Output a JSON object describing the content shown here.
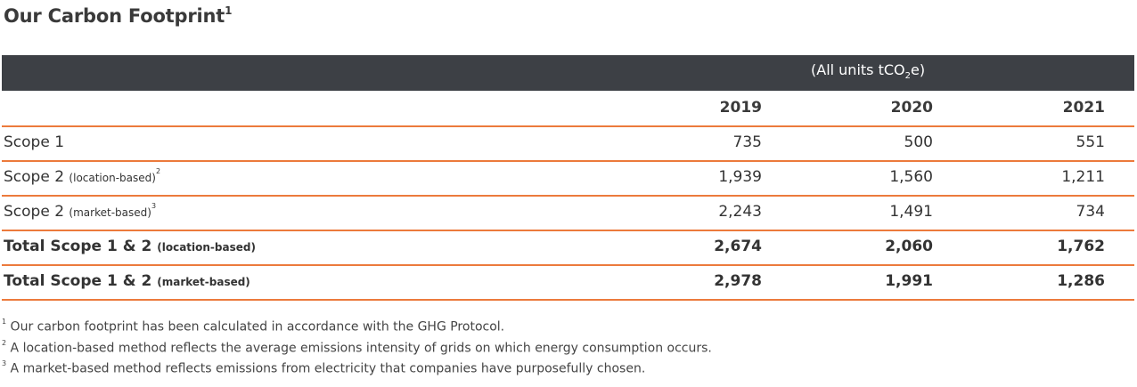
{
  "title": "Our Carbon Footprint",
  "title_sup": "1",
  "units": {
    "prefix": "(All units tCO",
    "sub": "2",
    "suffix": "e)"
  },
  "header": {
    "label": "",
    "years": [
      "2019",
      "2020",
      "2021"
    ]
  },
  "rows": [
    {
      "label": "Scope 1",
      "qualifier": "",
      "sup": "",
      "values": [
        "735",
        "500",
        "551"
      ],
      "bold": false
    },
    {
      "label": "Scope 2",
      "qualifier": "(location-based)",
      "sup": "2",
      "values": [
        "1,939",
        "1,560",
        "1,211"
      ],
      "bold": false
    },
    {
      "label": "Scope 2",
      "qualifier": "(market-based)",
      "sup": "3",
      "values": [
        "2,243",
        "1,491",
        "734"
      ],
      "bold": false
    },
    {
      "label": "Total Scope 1 & 2",
      "qualifier": "(location-based)",
      "sup": "",
      "values": [
        "2,674",
        "2,060",
        "1,762"
      ],
      "bold": true
    },
    {
      "label": "Total Scope 1 & 2",
      "qualifier": "(market-based)",
      "sup": "",
      "values": [
        "2,978",
        "1,991",
        "1,286"
      ],
      "bold": true
    }
  ],
  "footnotes": [
    {
      "num": "1",
      "text": "Our carbon footprint has been calculated in accordance with the GHG Protocol."
    },
    {
      "num": "2",
      "text": "A location-based method reflects the average emissions intensity of grids on which energy consumption occurs."
    },
    {
      "num": "3",
      "text": "A market-based method reflects emissions from electricity that companies have purposefully chosen."
    }
  ],
  "colors": {
    "header_bar": "#3d4045",
    "row_divider": "#ec7a3c"
  }
}
